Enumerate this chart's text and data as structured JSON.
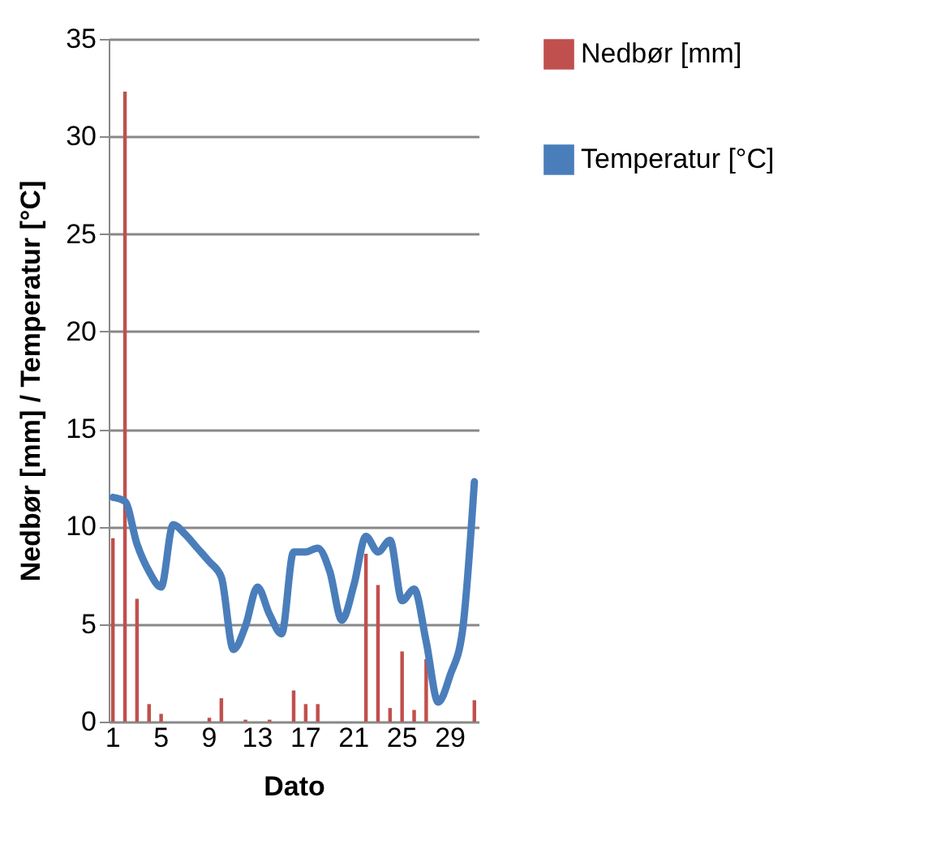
{
  "chart_data": {
    "type": "bar",
    "xlabel": "Dato",
    "ylabel": "Nedbør [mm] / Temperatur [°C]",
    "categories": [
      "1",
      null,
      null,
      null,
      "5",
      null,
      null,
      null,
      "9",
      null,
      null,
      null,
      "13",
      null,
      null,
      null,
      "17",
      null,
      null,
      null,
      "21",
      null,
      null,
      null,
      "25",
      null,
      null,
      null,
      "29",
      null,
      null
    ],
    "series": [
      {
        "name": "Nedbør [mm]",
        "color": "#c0504d",
        "values": [
          9.4,
          32.3,
          6.3,
          0.9,
          0.4,
          0,
          0,
          0,
          0.2,
          1.2,
          0,
          0.1,
          0,
          0.1,
          0,
          1.6,
          0.9,
          0.9,
          0,
          0,
          0,
          8.6,
          7.0,
          0.7,
          3.6,
          0.6,
          3.2,
          0,
          0,
          0,
          1.1
        ]
      },
      {
        "name": "Temperatur [°C]",
        "type": "line",
        "color": "#4a7ebb",
        "values": [
          11.5,
          11.3,
          9.1,
          7.7,
          6.9,
          10.1,
          9.6,
          8.9,
          8.2,
          7.4,
          3.7,
          4.9,
          6.9,
          5.5,
          4.5,
          8.7,
          8.7,
          8.9,
          7.7,
          5.2,
          7.0,
          9.5,
          8.7,
          9.3,
          6.2,
          6.8,
          4.1,
          1.0,
          2.4,
          4.6,
          12.3
        ]
      }
    ],
    "ylim": [
      0,
      35
    ],
    "yticks": [
      0,
      5,
      10,
      15,
      20,
      25,
      30,
      35
    ],
    "grid": "y",
    "legend": "right"
  }
}
